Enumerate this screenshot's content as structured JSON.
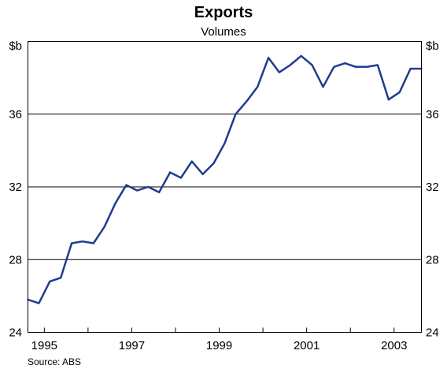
{
  "chart_data": {
    "type": "line",
    "title": "Exports",
    "subtitle": "Volumes",
    "unit_left": "$b",
    "unit_right": "$b",
    "source": "Source: ABS",
    "ylim": [
      24,
      40
    ],
    "yticks": [
      24,
      28,
      32,
      36
    ],
    "xlim": [
      1994.625,
      2003.625
    ],
    "xtick_labels": [
      "1995",
      "1997",
      "1999",
      "2001",
      "2003"
    ],
    "xtick_label_positions": [
      1995.0,
      1997.0,
      1999.0,
      2001.0,
      2003.0
    ],
    "grid": "horizontal",
    "colors": {
      "line": "#1f3c8f",
      "grid": "#000000",
      "frame": "#000000"
    },
    "series": [
      {
        "x": [
          1994.625,
          1994.875,
          1995.125,
          1995.375,
          1995.625,
          1995.875,
          1996.125,
          1996.375,
          1996.625,
          1996.875,
          1997.125,
          1997.375,
          1997.625,
          1997.875,
          1998.125,
          1998.375,
          1998.625,
          1998.875,
          1999.125,
          1999.375,
          1999.625,
          1999.875,
          2000.125,
          2000.375,
          2000.625,
          2000.875,
          2001.125,
          2001.375,
          2001.625,
          2001.875,
          2002.125,
          2002.375,
          2002.625,
          2002.875,
          2003.125,
          2003.375,
          2003.625
        ],
        "values": [
          25.8,
          25.6,
          26.8,
          27.0,
          28.9,
          29.0,
          28.9,
          29.8,
          31.1,
          32.1,
          31.8,
          32.0,
          31.7,
          32.8,
          32.5,
          33.4,
          32.7,
          33.3,
          34.4,
          36.0,
          36.7,
          37.5,
          39.1,
          38.3,
          38.7,
          39.2,
          38.7,
          37.5,
          38.6,
          38.8,
          38.6,
          38.6,
          38.7,
          36.8,
          37.2,
          38.5,
          38.5
        ]
      }
    ]
  }
}
